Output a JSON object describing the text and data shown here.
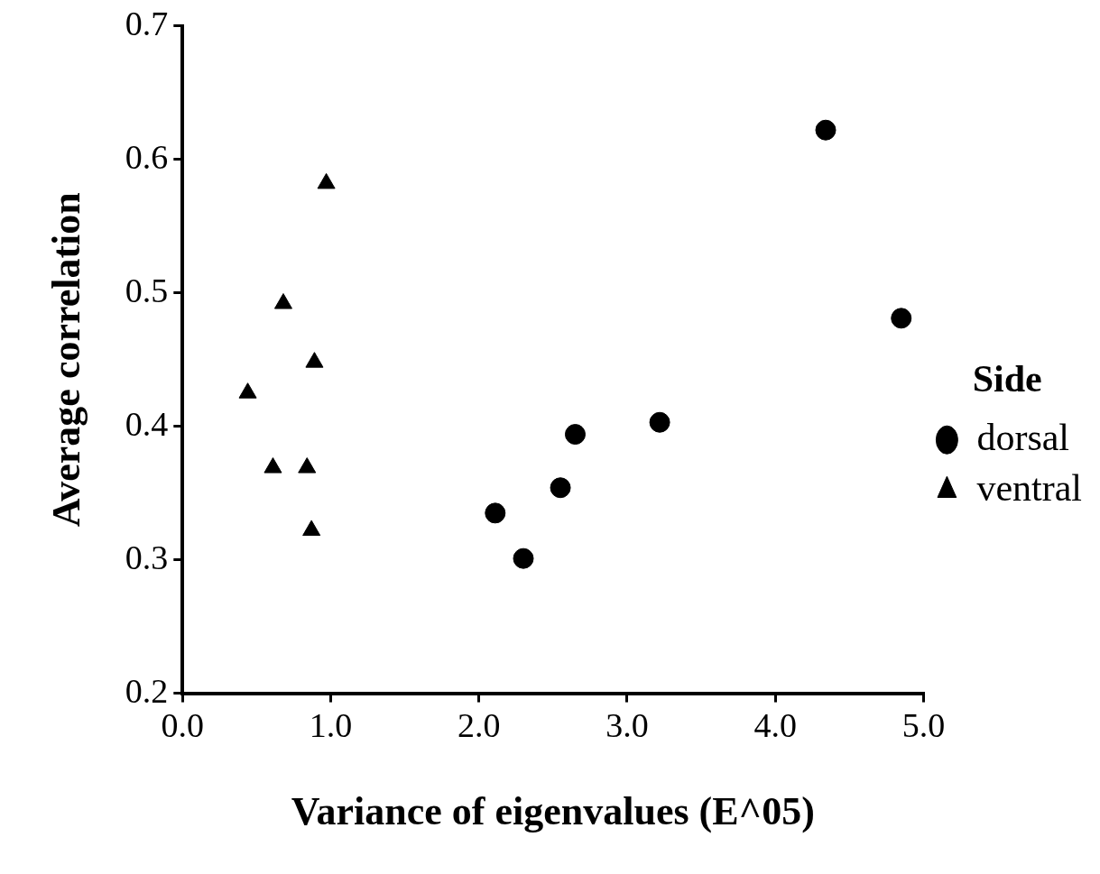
{
  "chart_data": {
    "type": "scatter",
    "xlabel": "Variance of eigenvalues (E^05)",
    "ylabel": "Average correlation",
    "legend_title": "Side",
    "legend": "right",
    "grid": false,
    "xlim": [
      0,
      5
    ],
    "xticks": [
      {
        "value": 0,
        "label": "0.0"
      },
      {
        "value": 1,
        "label": "1.0"
      },
      {
        "value": 2,
        "label": "2.0"
      },
      {
        "value": 3,
        "label": "3.0"
      },
      {
        "value": 4,
        "label": "4.0"
      },
      {
        "value": 5,
        "label": "5.0"
      }
    ],
    "ylim": [
      0.2,
      0.7
    ],
    "yticks": [
      0.2,
      0.3,
      0.4,
      0.5,
      0.6,
      0.7
    ],
    "series": [
      {
        "name": "dorsal",
        "color": "#000000",
        "marker": "circle",
        "x": [
          4.34,
          4.85,
          3.22,
          2.65,
          2.55,
          2.11,
          2.3
        ],
        "values": [
          0.622,
          0.481,
          0.403,
          0.394,
          0.354,
          0.335,
          0.301
        ]
      },
      {
        "name": "ventral",
        "color": "#000000",
        "marker": "triangle",
        "x": [
          0.97,
          0.68,
          0.89,
          0.44,
          0.61,
          0.84,
          0.87
        ],
        "values": [
          0.582,
          0.492,
          0.448,
          0.425,
          0.369,
          0.369,
          0.322
        ]
      }
    ]
  }
}
